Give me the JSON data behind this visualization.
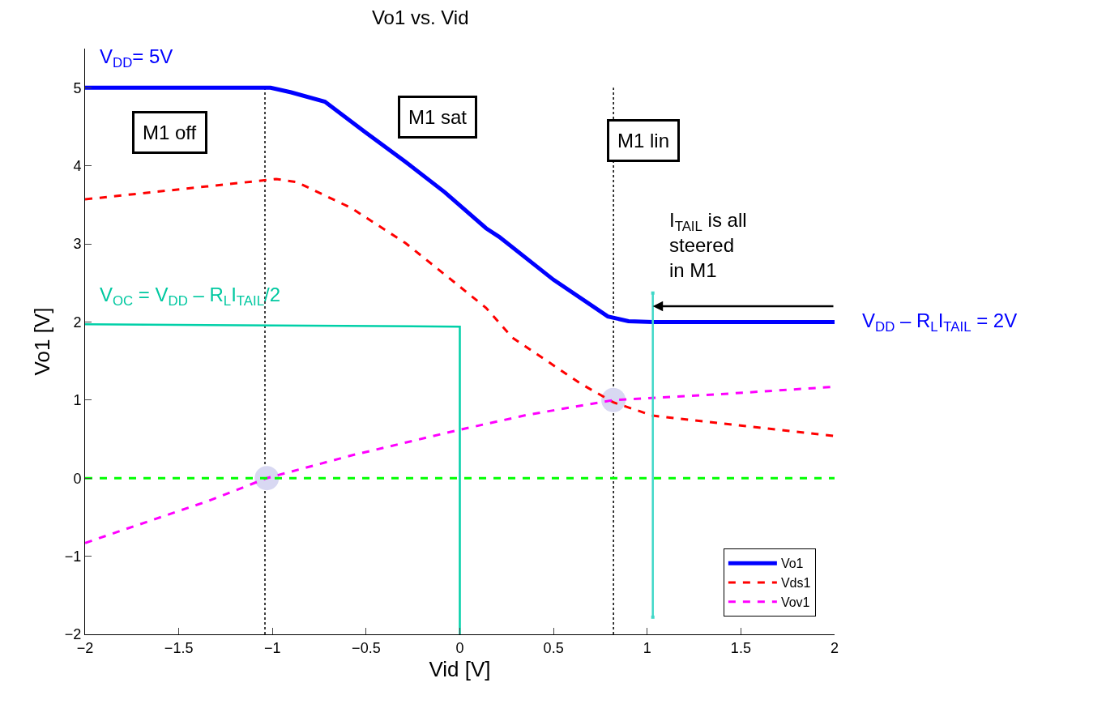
{
  "chart_data": {
    "type": "line",
    "title": "Vo1 vs. Vid",
    "xlabel": "Vid [V]",
    "ylabel": "Vo1 [V]",
    "xlim": [
      -2,
      2
    ],
    "xticks": [
      -2,
      -1.5,
      -1,
      -0.5,
      0,
      0.5,
      1,
      1.5,
      2
    ],
    "ylim": [
      -2,
      5.5
    ],
    "yticks": [
      -2,
      -1,
      0,
      1,
      2,
      3,
      4,
      5
    ],
    "grid": false,
    "legend": "bottom right",
    "series": [
      {
        "type": "scatter",
        "color": "#d8d8f2",
        "marker": "circle",
        "x": [
          -1.03,
          0.82
        ],
        "values": [
          0,
          1.0
        ]
      },
      {
        "name": "Vo1",
        "color": "#0000ff",
        "line_style": "solid",
        "x": [
          -2,
          -1.01,
          -0.9,
          -0.72,
          -0.51,
          -0.29,
          -0.08,
          0.14,
          0.21,
          0.5,
          0.79,
          0.9,
          1.03,
          2
        ],
        "values": [
          5,
          5,
          4.94,
          4.82,
          4.44,
          4.05,
          3.66,
          3.2,
          3.09,
          2.54,
          2.07,
          2.01,
          2.0,
          2.0
        ]
      },
      {
        "name": "Vds1",
        "color": "#ff0000",
        "line_style": "dashed",
        "x": [
          -2,
          -0.98,
          -0.87,
          -0.58,
          -0.29,
          -0.03,
          0.14,
          0.28,
          0.645,
          0.82,
          1.03,
          2
        ],
        "values": [
          3.57,
          3.83,
          3.79,
          3.46,
          3.01,
          2.51,
          2.18,
          1.8,
          1.21,
          0.97,
          0.8,
          0.54
        ]
      },
      {
        "name": "Vov1",
        "color": "#ff00ff",
        "line_style": "dashed",
        "x": [
          -2,
          -1.34,
          -1.03,
          -0.58,
          0,
          0.36,
          0.82,
          1.36,
          2
        ],
        "values": [
          -0.83,
          -0.29,
          0,
          0.29,
          0.62,
          0.81,
          1.0,
          1.07,
          1.17
        ]
      },
      {
        "color": "#00ff00",
        "line_style": "dashed",
        "x": [
          -2,
          2
        ],
        "values": [
          0,
          0
        ]
      },
      {
        "color": "#00d0a8",
        "line_style": "solid",
        "x": [
          -2,
          0,
          0
        ],
        "values": [
          1.97,
          1.94,
          -2
        ]
      },
      {
        "color": "#40d8c8",
        "line_style": "solid",
        "marker": "square",
        "x": [
          1.03,
          1.03
        ],
        "values": [
          2.37,
          -1.78
        ]
      }
    ],
    "ref_lines": [
      {
        "axis": "x",
        "value": -1.04,
        "color": "#000000",
        "line_style": "dotted"
      },
      {
        "axis": "x",
        "value": 0.82,
        "color": "#000000",
        "line_style": "dotted"
      }
    ],
    "annotations": [
      "V$_{DD}$= 5V",
      "M1 off",
      "M1 sat",
      "M1 lin",
      "V$_{OC}$ = V$_{DD}$ – R$_{L}$I$_{TAIL}$/2",
      "V$_{DD}$ – R$_{L}$I$_{TAIL}$ = 2V",
      {
        "text": "I$_{TAIL}$ is all\nsteered\nin M1",
        "x": 1.03,
        "y": 2.2
      }
    ]
  }
}
